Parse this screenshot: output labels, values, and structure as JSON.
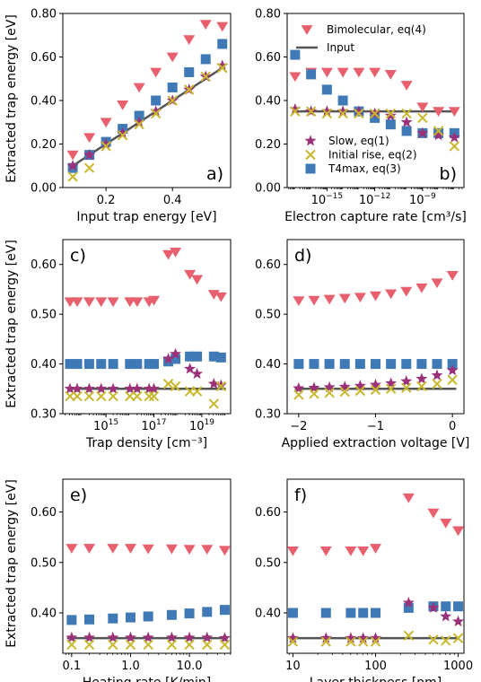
{
  "figure": {
    "ylabel": "Extracted trap energy [eV]",
    "legend": {
      "bimolecular": "Bimolecular, eq(4)",
      "input": "Input",
      "slow": "Slow, eq(1)",
      "initial_rise": "Initial rise, eq(2)",
      "t4max": "T4max, eq(3)"
    }
  },
  "colors": {
    "bimolecular": "#e8606e",
    "slow": "#9b3178",
    "initial_rise": "#c9b82d",
    "t4max": "#3f7ab6",
    "input": "#555555"
  },
  "chart_data": [
    {
      "id": "a",
      "type": "scatter",
      "panel_label": "a)",
      "xlabel": "Input trap energy [eV]",
      "xscale": "linear",
      "xlim": [
        0.07,
        0.575
      ],
      "ylim": [
        0.0,
        0.8
      ],
      "xticks": [
        {
          "v": 0.2,
          "label": "0.2"
        },
        {
          "v": 0.4,
          "label": "0.4"
        }
      ],
      "yticks": [
        {
          "v": 0.0,
          "label": "0.00"
        },
        {
          "v": 0.2,
          "label": "0.20"
        },
        {
          "v": 0.4,
          "label": "0.40"
        },
        {
          "v": 0.6,
          "label": "0.60"
        },
        {
          "v": 0.8,
          "label": "0.80"
        }
      ],
      "input_line": {
        "x": [
          0.1,
          0.55
        ],
        "y": [
          0.1,
          0.55
        ]
      },
      "series": [
        {
          "key": "bimolecular",
          "x": [
            0.1,
            0.15,
            0.2,
            0.25,
            0.3,
            0.35,
            0.4,
            0.45,
            0.5,
            0.55
          ],
          "y": [
            0.15,
            0.23,
            0.3,
            0.38,
            0.46,
            0.53,
            0.6,
            0.68,
            0.75,
            0.74
          ]
        },
        {
          "key": "t4max",
          "x": [
            0.1,
            0.15,
            0.2,
            0.25,
            0.3,
            0.35,
            0.4,
            0.45,
            0.5,
            0.55
          ],
          "y": [
            0.09,
            0.15,
            0.21,
            0.27,
            0.33,
            0.4,
            0.46,
            0.53,
            0.59,
            0.66
          ]
        },
        {
          "key": "slow",
          "x": [
            0.1,
            0.15,
            0.2,
            0.25,
            0.3,
            0.35,
            0.4,
            0.45,
            0.5,
            0.55
          ],
          "y": [
            0.1,
            0.15,
            0.2,
            0.25,
            0.3,
            0.35,
            0.4,
            0.45,
            0.51,
            0.56
          ]
        },
        {
          "key": "initial_rise",
          "x": [
            0.1,
            0.15,
            0.2,
            0.25,
            0.3,
            0.35,
            0.4,
            0.45,
            0.5,
            0.55
          ],
          "y": [
            0.05,
            0.09,
            0.19,
            0.24,
            0.29,
            0.34,
            0.4,
            0.45,
            0.51,
            0.55
          ]
        }
      ]
    },
    {
      "id": "b",
      "type": "scatter",
      "panel_label": "b)",
      "xlabel": "Electron capture rate [cm³/s]",
      "xscale": "log",
      "xlim": [
        -17.5,
        -6.4
      ],
      "ylim": [
        0.0,
        0.8
      ],
      "xticks": [
        {
          "v": -15,
          "label": "10",
          "exp": "−15"
        },
        {
          "v": -12,
          "label": "10",
          "exp": "−12"
        },
        {
          "v": -9,
          "label": "10",
          "exp": "−9"
        }
      ],
      "yticks": [
        {
          "v": 0.0,
          "label": "0.00"
        },
        {
          "v": 0.2,
          "label": "0.20"
        },
        {
          "v": 0.4,
          "label": "0.40"
        },
        {
          "v": 0.6,
          "label": "0.60"
        },
        {
          "v": 0.8,
          "label": "0.80"
        }
      ],
      "input_line": {
        "x": [
          -17,
          -7
        ],
        "y": [
          0.35,
          0.35
        ]
      },
      "series": [
        {
          "key": "bimolecular",
          "x": [
            -17,
            -16,
            -15,
            -14,
            -13,
            -12,
            -11,
            -10,
            -9,
            -8,
            -7
          ],
          "y": [
            0.51,
            0.53,
            0.53,
            0.53,
            0.53,
            0.53,
            0.52,
            0.47,
            0.37,
            0.35,
            0.35
          ]
        },
        {
          "key": "t4max",
          "x": [
            -17,
            -16,
            -15,
            -14,
            -13,
            -12,
            -11,
            -10,
            -9,
            -8,
            -7
          ],
          "y": [
            0.61,
            0.52,
            0.45,
            0.4,
            0.35,
            0.32,
            0.29,
            0.26,
            0.25,
            0.25,
            0.25
          ]
        },
        {
          "key": "slow",
          "x": [
            -17,
            -16,
            -15,
            -14,
            -13,
            -12,
            -11,
            -10,
            -9,
            -8,
            -7
          ],
          "y": [
            0.36,
            0.35,
            0.35,
            0.35,
            0.35,
            0.34,
            0.33,
            0.3,
            0.25,
            0.24,
            0.23
          ]
        },
        {
          "key": "initial_rise",
          "x": [
            -17,
            -16,
            -15,
            -14,
            -13,
            -12,
            -11,
            -10,
            -9,
            -8,
            -7
          ],
          "y": [
            0.35,
            0.35,
            0.34,
            0.34,
            0.34,
            0.34,
            0.34,
            0.34,
            0.32,
            0.26,
            0.19
          ]
        }
      ],
      "legend_top": [
        "bimolecular",
        "input"
      ],
      "legend_bottom": [
        "slow",
        "initial_rise",
        "t4max"
      ]
    },
    {
      "id": "c",
      "type": "scatter",
      "panel_label": "c)",
      "xlabel": "Trap density [cm⁻³]",
      "xscale": "log",
      "xlim": [
        13.2,
        20.2
      ],
      "ylim": [
        0.3,
        0.65
      ],
      "xticks": [
        {
          "v": 15,
          "label": "10",
          "exp": "15"
        },
        {
          "v": 17,
          "label": "10",
          "exp": "17"
        },
        {
          "v": 19,
          "label": "10",
          "exp": "19"
        }
      ],
      "yticks": [
        {
          "v": 0.3,
          "label": "0.30"
        },
        {
          "v": 0.4,
          "label": "0.40"
        },
        {
          "v": 0.5,
          "label": "0.50"
        },
        {
          "v": 0.6,
          "label": "0.60"
        }
      ],
      "input_line": {
        "x": [
          13.5,
          20
        ],
        "y": [
          0.35,
          0.35
        ]
      },
      "series": [
        {
          "key": "bimolecular",
          "x": [
            13.5,
            13.8,
            14.3,
            14.8,
            15.3,
            16.0,
            16.3,
            16.8,
            17.0,
            17.6,
            17.9,
            18.5,
            18.8,
            19.5,
            19.8
          ],
          "y": [
            0.525,
            0.525,
            0.525,
            0.525,
            0.525,
            0.525,
            0.525,
            0.525,
            0.528,
            0.62,
            0.625,
            0.58,
            0.57,
            0.54,
            0.535
          ]
        },
        {
          "key": "t4max",
          "x": [
            13.5,
            13.8,
            14.3,
            14.8,
            15.3,
            16.0,
            16.3,
            16.8,
            17.0,
            17.6,
            17.9,
            18.5,
            18.8,
            19.5,
            19.8
          ],
          "y": [
            0.4,
            0.4,
            0.4,
            0.4,
            0.4,
            0.4,
            0.4,
            0.4,
            0.4,
            0.405,
            0.41,
            0.415,
            0.415,
            0.415,
            0.413
          ]
        },
        {
          "key": "slow",
          "x": [
            13.5,
            13.8,
            14.3,
            14.8,
            15.3,
            16.0,
            16.3,
            16.8,
            17.0,
            17.6,
            17.9,
            18.5,
            18.8,
            19.5,
            19.8
          ],
          "y": [
            0.35,
            0.35,
            0.35,
            0.35,
            0.35,
            0.35,
            0.35,
            0.35,
            0.35,
            0.41,
            0.42,
            0.39,
            0.38,
            0.36,
            0.357
          ]
        },
        {
          "key": "initial_rise",
          "x": [
            13.5,
            13.8,
            14.3,
            14.8,
            15.3,
            16.0,
            16.3,
            16.8,
            17.0,
            17.6,
            17.9,
            18.5,
            18.8,
            19.5,
            19.8
          ],
          "y": [
            0.335,
            0.335,
            0.335,
            0.335,
            0.335,
            0.335,
            0.335,
            0.335,
            0.335,
            0.36,
            0.355,
            0.345,
            0.345,
            0.32,
            0.355
          ]
        }
      ]
    },
    {
      "id": "d",
      "type": "scatter",
      "panel_label": "d)",
      "xlabel": "Applied extraction voltage [V]",
      "xscale": "linear",
      "xlim": [
        -2.15,
        0.15
      ],
      "ylim": [
        0.3,
        0.65
      ],
      "xticks": [
        {
          "v": -2,
          "label": "−2"
        },
        {
          "v": -1,
          "label": "−1"
        },
        {
          "v": 0,
          "label": "0"
        }
      ],
      "yticks": [
        {
          "v": 0.3,
          "label": "0.30"
        },
        {
          "v": 0.4,
          "label": "0.40"
        },
        {
          "v": 0.5,
          "label": "0.50"
        },
        {
          "v": 0.6,
          "label": "0.60"
        }
      ],
      "input_line": {
        "x": [
          -2.05,
          0.05
        ],
        "y": [
          0.35,
          0.35
        ]
      },
      "series": [
        {
          "key": "bimolecular",
          "x": [
            -2.0,
            -1.8,
            -1.6,
            -1.4,
            -1.2,
            -1.0,
            -0.8,
            -0.6,
            -0.4,
            -0.2,
            0.0
          ],
          "y": [
            0.527,
            0.528,
            0.53,
            0.532,
            0.534,
            0.537,
            0.541,
            0.546,
            0.553,
            0.563,
            0.578
          ]
        },
        {
          "key": "t4max",
          "x": [
            -2.0,
            -1.8,
            -1.6,
            -1.4,
            -1.2,
            -1.0,
            -0.8,
            -0.6,
            -0.4,
            -0.2,
            0.0
          ],
          "y": [
            0.4,
            0.4,
            0.4,
            0.4,
            0.4,
            0.4,
            0.4,
            0.4,
            0.4,
            0.4,
            0.4
          ]
        },
        {
          "key": "slow",
          "x": [
            -2.0,
            -1.8,
            -1.6,
            -1.4,
            -1.2,
            -1.0,
            -0.8,
            -0.6,
            -0.4,
            -0.2,
            0.0
          ],
          "y": [
            0.351,
            0.352,
            0.353,
            0.354,
            0.356,
            0.358,
            0.361,
            0.365,
            0.37,
            0.377,
            0.387
          ]
        },
        {
          "key": "initial_rise",
          "x": [
            -2.0,
            -1.8,
            -1.6,
            -1.4,
            -1.2,
            -1.0,
            -0.8,
            -0.6,
            -0.4,
            -0.2,
            0.0
          ],
          "y": [
            0.338,
            0.34,
            0.342,
            0.344,
            0.346,
            0.348,
            0.35,
            0.352,
            0.355,
            0.36,
            0.368
          ]
        }
      ]
    },
    {
      "id": "e",
      "type": "scatter",
      "panel_label": "e)",
      "xlabel": "Heating rate [K/min]",
      "xscale": "log",
      "xlim": [
        -1.15,
        1.7
      ],
      "ylim": [
        0.32,
        0.665
      ],
      "xticks": [
        {
          "v": -1,
          "label": "0.1"
        },
        {
          "v": 0,
          "label": "1.0"
        },
        {
          "v": 1,
          "label": "10.0"
        }
      ],
      "yticks": [
        {
          "v": 0.4,
          "label": "0.40"
        },
        {
          "v": 0.5,
          "label": "0.50"
        },
        {
          "v": 0.6,
          "label": "0.60"
        }
      ],
      "input_line": {
        "x": [
          -1.08,
          1.65
        ],
        "y": [
          0.35,
          0.35
        ]
      },
      "series": [
        {
          "key": "bimolecular",
          "x": [
            -1.0,
            -0.7,
            -0.3,
            0.0,
            0.3,
            0.7,
            1.0,
            1.3,
            1.6
          ],
          "y": [
            0.528,
            0.528,
            0.528,
            0.528,
            0.527,
            0.527,
            0.526,
            0.526,
            0.524
          ]
        },
        {
          "key": "t4max",
          "x": [
            -1.0,
            -0.7,
            -0.3,
            0.0,
            0.3,
            0.7,
            1.0,
            1.3,
            1.6
          ],
          "y": [
            0.386,
            0.387,
            0.389,
            0.391,
            0.393,
            0.396,
            0.399,
            0.402,
            0.406
          ]
        },
        {
          "key": "slow",
          "x": [
            -1.0,
            -0.7,
            -0.3,
            0.0,
            0.3,
            0.7,
            1.0,
            1.3,
            1.6
          ],
          "y": [
            0.351,
            0.351,
            0.351,
            0.351,
            0.351,
            0.351,
            0.351,
            0.351,
            0.35
          ]
        },
        {
          "key": "initial_rise",
          "x": [
            -1.0,
            -0.7,
            -0.3,
            0.0,
            0.3,
            0.7,
            1.0,
            1.3,
            1.6
          ],
          "y": [
            0.337,
            0.337,
            0.337,
            0.337,
            0.337,
            0.337,
            0.337,
            0.337,
            0.337
          ]
        }
      ]
    },
    {
      "id": "f",
      "type": "scatter",
      "panel_label": "f)",
      "xlabel": "Layer thickness [nm]",
      "xscale": "log",
      "xlim": [
        0.93,
        3.07
      ],
      "ylim": [
        0.32,
        0.665
      ],
      "xticks": [
        {
          "v": 1,
          "label": "10"
        },
        {
          "v": 2,
          "label": "100"
        },
        {
          "v": 3,
          "label": "1000"
        }
      ],
      "yticks": [
        {
          "v": 0.4,
          "label": "0.40"
        },
        {
          "v": 0.5,
          "label": "0.50"
        },
        {
          "v": 0.6,
          "label": "0.60"
        }
      ],
      "input_line": {
        "x": [
          1.0,
          3.0
        ],
        "y": [
          0.35,
          0.35
        ]
      },
      "series": [
        {
          "key": "bimolecular",
          "x": [
            1.0,
            1.4,
            1.7,
            1.85,
            2.0,
            2.4,
            2.7,
            2.85,
            3.0
          ],
          "y": [
            0.523,
            0.523,
            0.523,
            0.523,
            0.528,
            0.628,
            0.598,
            0.578,
            0.563
          ]
        },
        {
          "key": "t4max",
          "x": [
            1.0,
            1.4,
            1.7,
            1.85,
            2.0,
            2.4,
            2.7,
            2.85,
            3.0
          ],
          "y": [
            0.4,
            0.4,
            0.4,
            0.4,
            0.4,
            0.41,
            0.413,
            0.413,
            0.413
          ]
        },
        {
          "key": "slow",
          "x": [
            1.0,
            1.4,
            1.7,
            1.85,
            2.0,
            2.4,
            2.7,
            2.85,
            3.0
          ],
          "y": [
            0.35,
            0.35,
            0.35,
            0.35,
            0.35,
            0.42,
            0.41,
            0.393,
            0.383
          ]
        },
        {
          "key": "initial_rise",
          "x": [
            1.0,
            1.4,
            1.7,
            1.85,
            2.0,
            2.4,
            2.7,
            2.85,
            3.0
          ],
          "y": [
            0.343,
            0.343,
            0.343,
            0.343,
            0.343,
            0.355,
            0.347,
            0.345,
            0.35
          ]
        }
      ]
    }
  ]
}
